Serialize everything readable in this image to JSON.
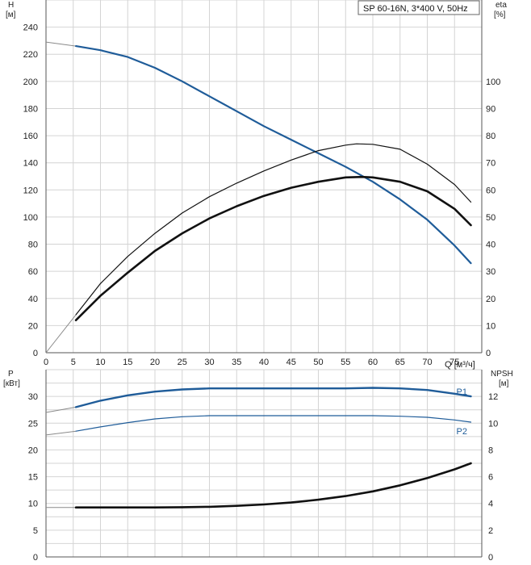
{
  "chart_data": [
    {
      "type": "line",
      "title": "SP 60-16N, 3*400 V, 50Hz",
      "xlabel": "Q [м³/ч]",
      "ylabel": "H\n[м]",
      "y2label": "eta\n[%]",
      "xlim": [
        0,
        80
      ],
      "ylim": [
        0,
        260
      ],
      "y2lim": [
        0,
        130
      ],
      "x_ticks": [
        0,
        5,
        10,
        15,
        20,
        25,
        30,
        35,
        40,
        45,
        50,
        55,
        60,
        65,
        70,
        75
      ],
      "y_ticks": [
        0,
        20,
        40,
        60,
        80,
        100,
        120,
        140,
        160,
        180,
        200,
        220,
        240
      ],
      "y2_ticks": [
        0,
        10,
        20,
        30,
        40,
        50,
        60,
        70,
        80,
        90,
        100
      ],
      "grid": true,
      "series": [
        {
          "name": "",
          "axis": "y",
          "color": "#1f5c99",
          "extension": {
            "x": [
              0,
              5.5
            ],
            "y": [
              229,
              226
            ]
          },
          "x": [
            5.5,
            10,
            15,
            20,
            25,
            30,
            35,
            40,
            45,
            50,
            55,
            60,
            65,
            70,
            75,
            78
          ],
          "y": [
            226,
            223,
            218,
            210,
            200,
            189,
            178,
            167,
            157,
            147,
            137,
            126,
            113,
            98,
            79,
            66
          ]
        },
        {
          "name": "",
          "axis": "y2",
          "color": "#111111",
          "width": 1.2,
          "extension": {
            "x": [
              0,
              5.5
            ],
            "y": [
              0,
              14
            ]
          },
          "x": [
            5.5,
            10,
            15,
            20,
            25,
            30,
            35,
            40,
            45,
            50,
            55,
            57,
            60,
            65,
            70,
            75,
            78
          ],
          "y": [
            14,
            25.5,
            35.5,
            44,
            51.5,
            57.5,
            62.5,
            67,
            71,
            74.5,
            76.5,
            77,
            76.8,
            75,
            69.5,
            62,
            55.5
          ]
        },
        {
          "name": "",
          "axis": "y2",
          "color": "#111111",
          "width": 2.6,
          "x": [
            5.5,
            10,
            15,
            20,
            25,
            30,
            35,
            40,
            45,
            50,
            55,
            58,
            60,
            65,
            70,
            75,
            78
          ],
          "y": [
            12,
            21,
            29.5,
            37.5,
            44,
            49.5,
            54,
            57.8,
            60.8,
            63,
            64.6,
            64.8,
            64.6,
            63,
            59.5,
            53,
            47
          ]
        }
      ]
    },
    {
      "type": "line",
      "xlabel": "",
      "ylabel": "P\n[кВт]",
      "y2label": "NPSH\n[м]",
      "xlim": [
        0,
        80
      ],
      "ylim": [
        0,
        35
      ],
      "y2lim": [
        0,
        14
      ],
      "y_ticks": [
        0,
        5,
        10,
        15,
        20,
        25,
        30
      ],
      "y2_ticks": [
        0,
        2,
        4,
        6,
        8,
        10,
        12
      ],
      "grid": true,
      "series": [
        {
          "name": "P1",
          "axis": "y",
          "color": "#1f5c99",
          "width": 2.4,
          "extension": {
            "x": [
              0,
              5.5
            ],
            "y": [
              27,
              28
            ]
          },
          "x": [
            5.5,
            10,
            15,
            20,
            25,
            30,
            35,
            40,
            45,
            50,
            55,
            60,
            65,
            70,
            75,
            78
          ],
          "y": [
            28,
            29.2,
            30.2,
            30.9,
            31.3,
            31.5,
            31.5,
            31.5,
            31.5,
            31.5,
            31.5,
            31.6,
            31.5,
            31.2,
            30.5,
            30
          ]
        },
        {
          "name": "P2",
          "axis": "y",
          "color": "#1f5c99",
          "width": 1.2,
          "extension": {
            "x": [
              0,
              5.5
            ],
            "y": [
              22.8,
              23.5
            ]
          },
          "x": [
            5.5,
            10,
            15,
            20,
            25,
            30,
            35,
            40,
            45,
            50,
            55,
            60,
            65,
            70,
            75,
            78
          ],
          "y": [
            23.5,
            24.3,
            25.1,
            25.8,
            26.2,
            26.4,
            26.4,
            26.4,
            26.4,
            26.4,
            26.4,
            26.4,
            26.3,
            26.1,
            25.6,
            25.2
          ]
        },
        {
          "name": "",
          "axis": "y2",
          "color": "#111111",
          "width": 2.6,
          "extension": {
            "x": [
              0,
              5.5
            ],
            "y": [
              3.7,
              3.7
            ]
          },
          "x": [
            5.5,
            10,
            15,
            20,
            25,
            30,
            35,
            40,
            45,
            50,
            55,
            60,
            65,
            70,
            75,
            78
          ],
          "y": [
            3.7,
            3.7,
            3.7,
            3.7,
            3.72,
            3.75,
            3.82,
            3.92,
            4.07,
            4.28,
            4.55,
            4.9,
            5.35,
            5.9,
            6.55,
            7
          ]
        }
      ]
    }
  ]
}
